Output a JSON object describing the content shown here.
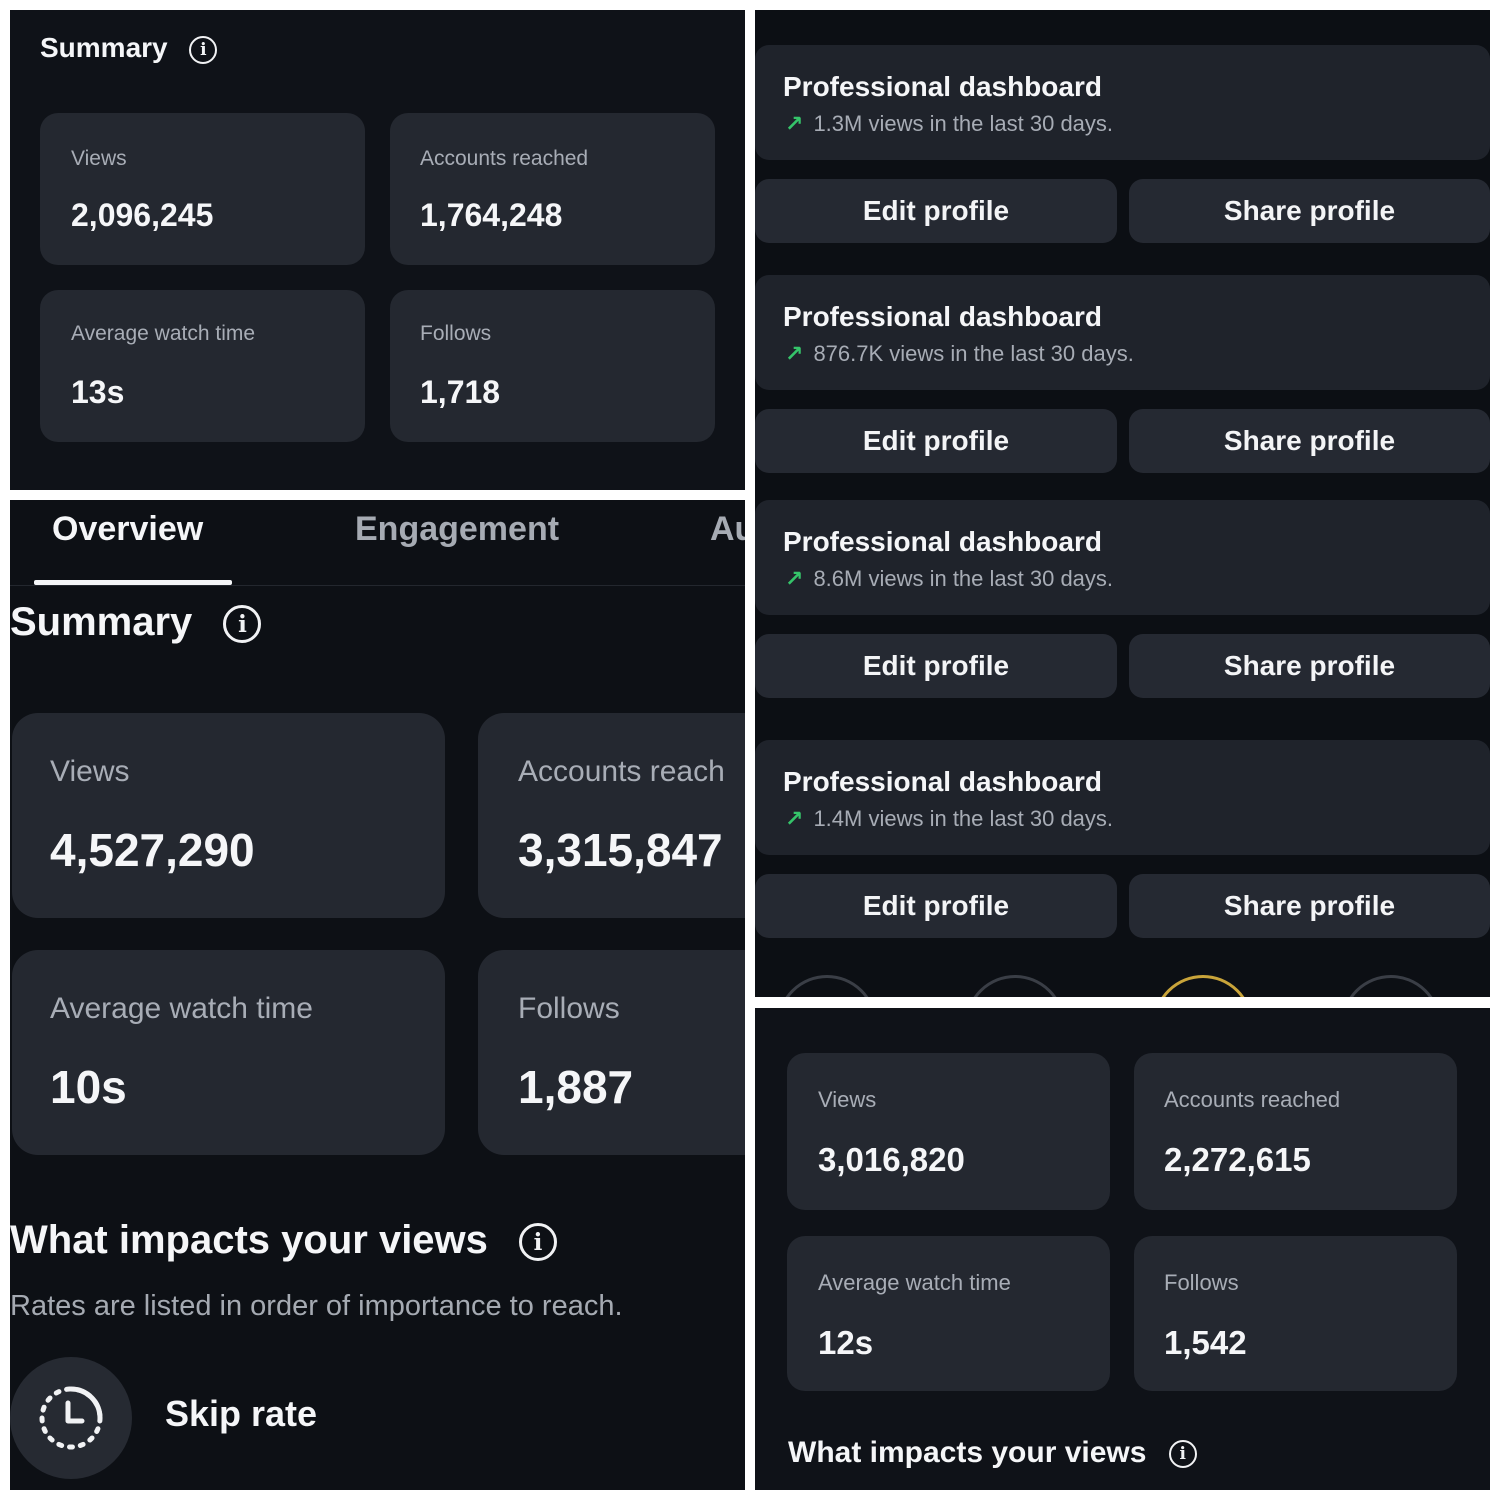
{
  "panel_a": {
    "title": "Summary",
    "cards": [
      {
        "label": "Views",
        "value": "2,096,245"
      },
      {
        "label": "Accounts reached",
        "value": "1,764,248"
      },
      {
        "label": "Average watch time",
        "value": "13s"
      },
      {
        "label": "Follows",
        "value": "1,718"
      }
    ]
  },
  "panel_b": {
    "tabs": [
      "Overview",
      "Engagement",
      "Au"
    ],
    "title": "Summary",
    "cards": [
      {
        "label": "Views",
        "value": "4,527,290"
      },
      {
        "label": "Accounts reach",
        "value": "3,315,847"
      },
      {
        "label": "Average watch time",
        "value": "10s"
      },
      {
        "label": "Follows",
        "value": "1,887"
      }
    ],
    "impacts_title": "What impacts your views",
    "impacts_subtitle": "Rates are listed in order of importance to reach.",
    "skip_rate_label": "Skip rate"
  },
  "panel_c": {
    "dashboards": [
      {
        "title": "Professional dashboard",
        "subtitle": "1.3M views in the last 30 days."
      },
      {
        "title": "Professional dashboard",
        "subtitle": "876.7K views in the last 30 days."
      },
      {
        "title": "Professional dashboard",
        "subtitle": "8.6M  views in the last 30 days."
      },
      {
        "title": "Professional dashboard",
        "subtitle": "1.4M views in the last 30 days."
      }
    ],
    "edit_label": "Edit profile",
    "share_label": "Share profile",
    "trend_icon": "arrow-up-right-icon",
    "trend_color": "#35c46a"
  },
  "panel_d": {
    "cards": [
      {
        "label": "Views",
        "value": "3,016,820"
      },
      {
        "label": "Accounts reached",
        "value": "2,272,615"
      },
      {
        "label": "Average watch time",
        "value": "12s"
      },
      {
        "label": "Follows",
        "value": "1,542"
      }
    ],
    "impacts_title": "What impacts your views"
  }
}
